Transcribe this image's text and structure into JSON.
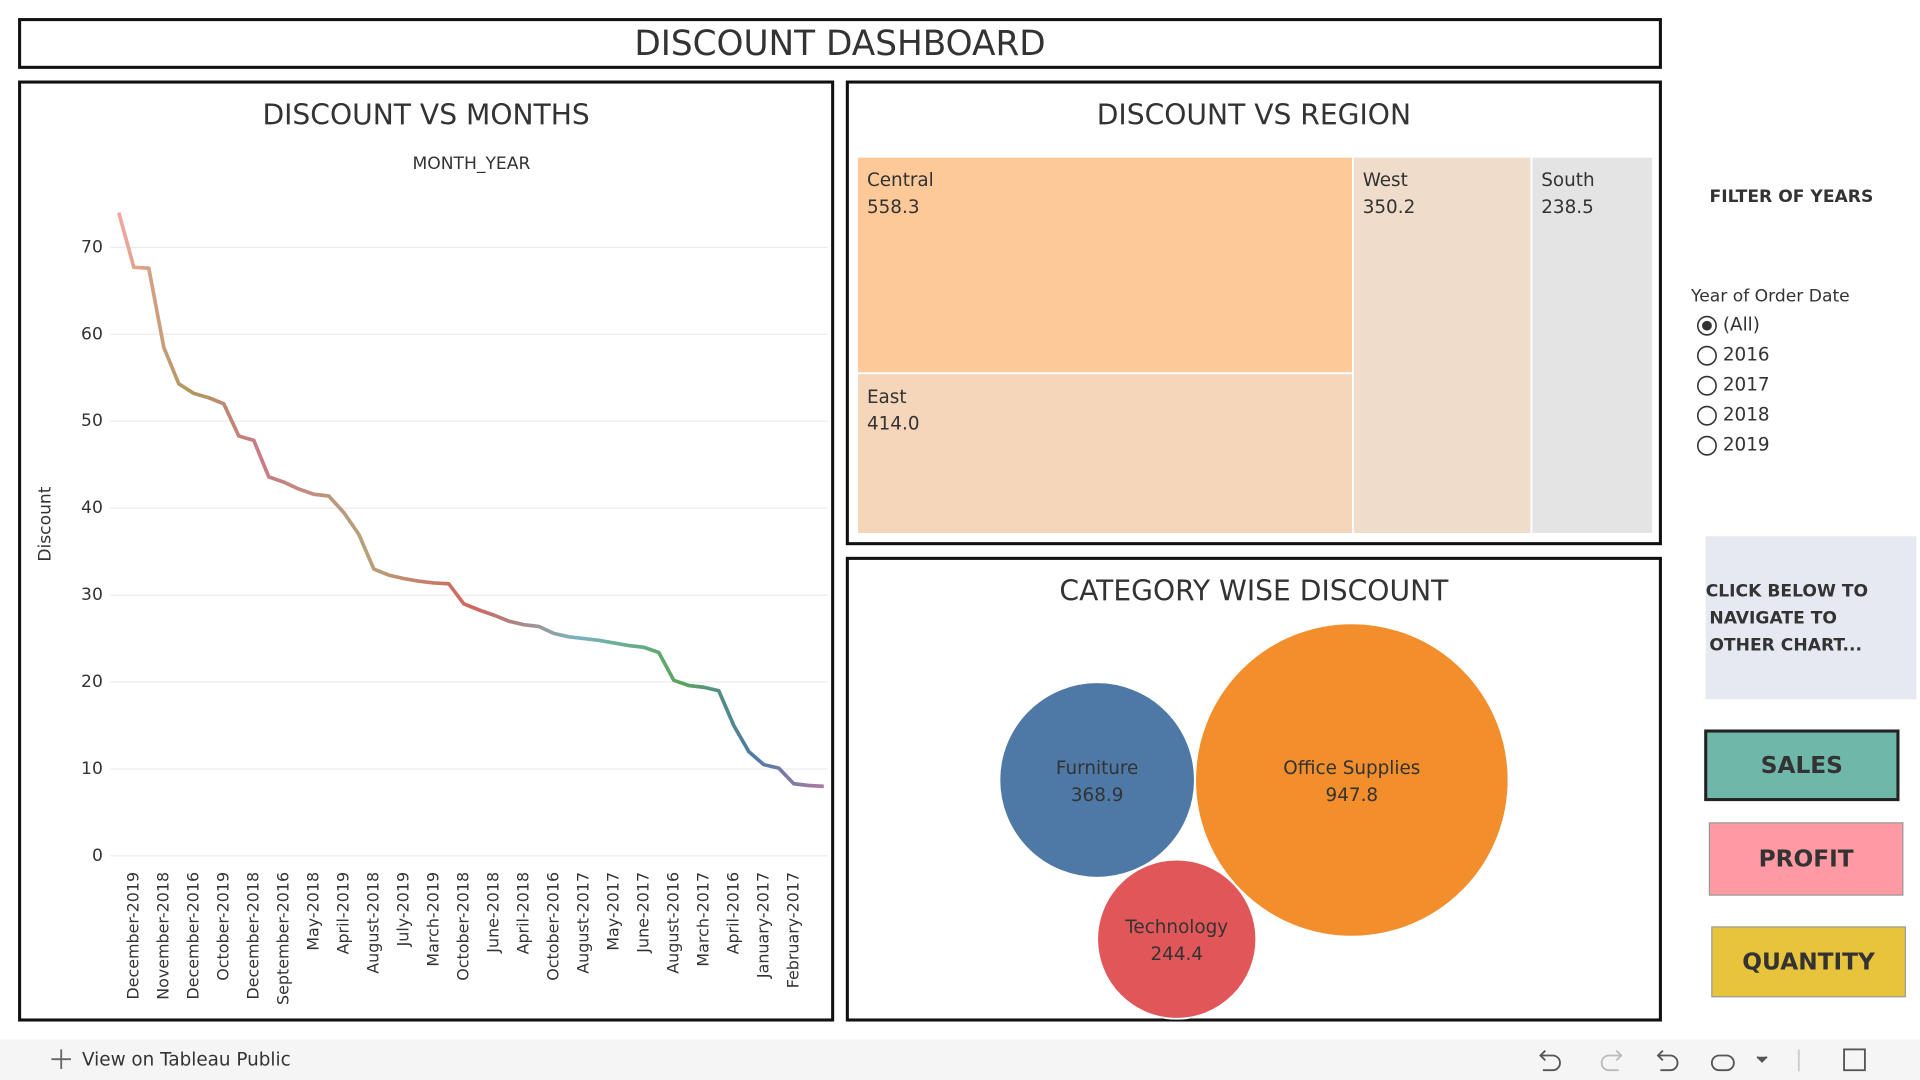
{
  "header": {
    "title": "DISCOUNT DASHBOARD"
  },
  "chart_data": [
    {
      "type": "line",
      "title": "DISCOUNT VS MONTHS",
      "x_title": "MONTH_YEAR",
      "y_title": "Discount",
      "categories": [
        null,
        "December-2019",
        null,
        "November-2018",
        null,
        "December-2016",
        null,
        "October-2019",
        null,
        "December-2018",
        null,
        "September-2016",
        null,
        "May-2018",
        null,
        "April-2019",
        null,
        "August-2018",
        null,
        "July-2019",
        null,
        "March-2019",
        null,
        "October-2018",
        null,
        "June-2018",
        null,
        "April-2018",
        null,
        "October-2016",
        null,
        "August-2017",
        null,
        "May-2017",
        null,
        "June-2017",
        null,
        "August-2016",
        null,
        "March-2017",
        null,
        "April-2016",
        null,
        "January-2017",
        null,
        "February-2017",
        null,
        null
      ],
      "values": [
        74,
        67.7,
        67.6,
        58.5,
        54.3,
        53.2,
        52.7,
        52,
        48.3,
        47.8,
        43.6,
        43,
        42.2,
        41.6,
        41.4,
        39.5,
        37,
        33,
        32.3,
        31.9,
        31.6,
        31.4,
        31.3,
        29,
        28.3,
        27.7,
        27,
        26.6,
        26.4,
        25.6,
        25.2,
        25,
        24.8,
        24.5,
        24.2,
        24,
        23.4,
        20.2,
        19.6,
        19.4,
        19,
        15,
        12,
        10.5,
        10.1,
        8.3,
        8.1,
        8
      ],
      "ylim": [
        -1.5,
        76
      ],
      "yticks": [
        0,
        10,
        20,
        30,
        40,
        50,
        60,
        70
      ],
      "grid": true
    },
    {
      "type": "treemap",
      "title": "DISCOUNT VS REGION",
      "categories": [
        "Central",
        "East",
        "West",
        "South"
      ],
      "values": [
        558.3,
        414,
        350.2,
        238.5
      ],
      "value_labels": [
        "558.3",
        "414.0",
        "350.2",
        "238.5"
      ],
      "colors": [
        "#fdc998",
        "#f5d6bb",
        "#efdccb",
        "#e4e4e4"
      ]
    },
    {
      "type": "bubble",
      "title": "CATEGORY WISE DISCOUNT",
      "categories": [
        "Furniture",
        "Office Supplies",
        "Technology"
      ],
      "values": [
        368.9,
        947.8,
        244.4
      ],
      "value_labels": [
        "368.9",
        "947.8",
        "244.4"
      ],
      "colors": [
        "#4e79a7",
        "#f28e2b",
        "#e15759"
      ]
    }
  ],
  "filter": {
    "title": "FILTER OF YEARS",
    "label": "Year of Order Date",
    "options": [
      "(All)",
      "2016",
      "2017",
      "2018",
      "2019"
    ],
    "selected": 0
  },
  "navigation": {
    "lines": [
      "CLICK BELOW TO",
      "NAVIGATE TO",
      "OTHER CHART..."
    ],
    "buttons": [
      "SALES",
      "PROFIT",
      "QUANTITY"
    ]
  },
  "footer": {
    "link": "View on Tableau Public"
  }
}
